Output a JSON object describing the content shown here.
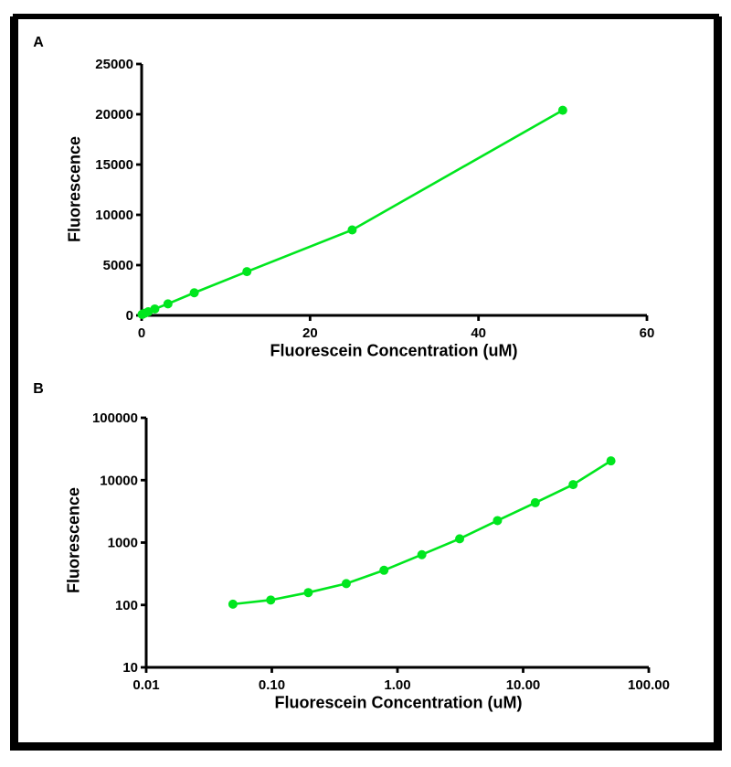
{
  "figure": {
    "background": "#ffffff",
    "frame_color": "#000000",
    "text_color": "#000000",
    "accent_green": "#00e61e"
  },
  "panels": [
    {
      "letter": "A"
    },
    {
      "letter": "B"
    }
  ],
  "chart_data": [
    {
      "type": "line",
      "title": "",
      "xlabel": "Fluorescein Concentration (uM)",
      "ylabel": "Fluorescence",
      "xscale": "linear",
      "yscale": "linear",
      "xlim": [
        0,
        60
      ],
      "ylim": [
        0,
        25000
      ],
      "grid": false,
      "legend": false,
      "xticks": {
        "values": [
          0,
          20,
          40,
          60
        ],
        "labels": [
          "0",
          "20",
          "40",
          "60"
        ]
      },
      "yticks": {
        "values": [
          0,
          5000,
          10000,
          15000,
          20000,
          25000
        ],
        "labels": [
          "0",
          "5000",
          "10000",
          "15000",
          "20000",
          "25000"
        ]
      },
      "series": [
        {
          "color": "#00e61e",
          "x": [
            0.049,
            0.098,
            0.195,
            0.391,
            0.781,
            1.563,
            3.125,
            6.25,
            12.5,
            25,
            50
          ],
          "y": [
            103,
            120,
            158,
            220,
            360,
            640,
            1150,
            2250,
            4350,
            8500,
            20400
          ]
        }
      ]
    },
    {
      "type": "line",
      "title": "",
      "xlabel": "Fluorescein Concentration (uM)",
      "ylabel": "Fluorescence",
      "xscale": "log",
      "yscale": "log",
      "xlim": [
        0.01,
        100
      ],
      "ylim": [
        10,
        100000
      ],
      "grid": false,
      "legend": false,
      "xticks": {
        "values": [
          0.01,
          0.1,
          1,
          10,
          100
        ],
        "labels": [
          "0.01",
          "0.10",
          "1.00",
          "10.00",
          "100.00"
        ]
      },
      "yticks": {
        "values": [
          10,
          100,
          1000,
          10000,
          100000
        ],
        "labels": [
          "10",
          "100",
          "1000",
          "10000",
          "100000"
        ]
      },
      "series": [
        {
          "color": "#00e61e",
          "x": [
            0.049,
            0.098,
            0.195,
            0.391,
            0.781,
            1.563,
            3.125,
            6.25,
            12.5,
            25,
            50
          ],
          "y": [
            103,
            120,
            158,
            220,
            360,
            640,
            1150,
            2250,
            4350,
            8500,
            20400
          ]
        }
      ]
    }
  ]
}
